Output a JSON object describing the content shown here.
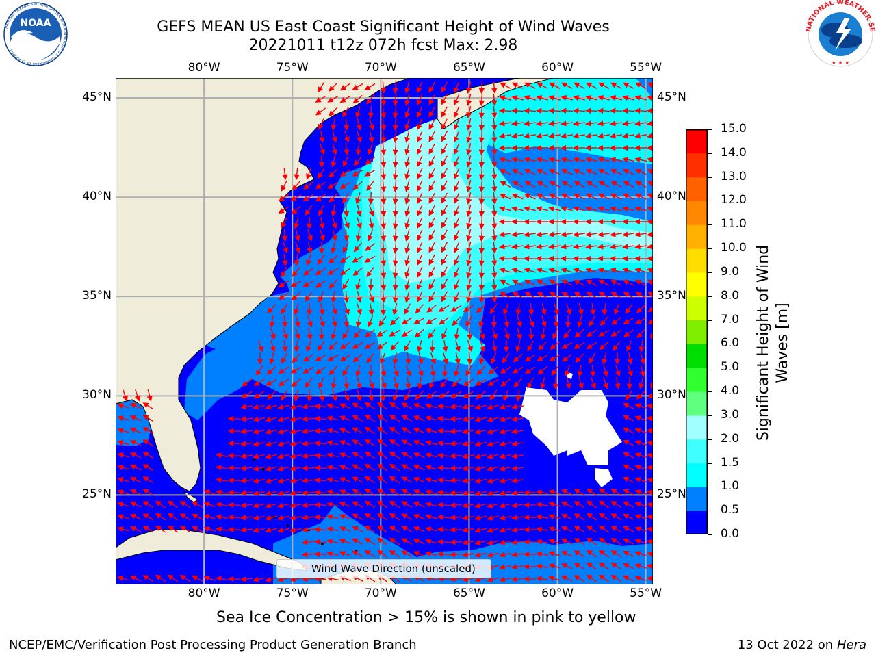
{
  "header": {
    "title_line1": "GEFS MEAN US East Coast Significant Height of Wind Waves",
    "title_line2": "20221011 t12z 072h fcst   Max: 2.98"
  },
  "logos": {
    "left": "noaa-logo",
    "left_text": "NOAA",
    "left_ring_text": "NATIONAL OCEANIC AND ATMOSPHERIC ADMINISTRATION · U.S. DEPARTMENT OF COMMERCE",
    "right": "nws-logo",
    "right_ring_text": "NATIONAL WEATHER SERVICE"
  },
  "map": {
    "lon_labels": [
      "80°W",
      "75°W",
      "70°W",
      "65°W",
      "60°W",
      "55°W"
    ],
    "lon_values": [
      -80,
      -75,
      -70,
      -65,
      -60,
      -55
    ],
    "lat_labels": [
      "45°N",
      "40°N",
      "35°N",
      "30°N",
      "25°N"
    ],
    "lat_values": [
      45,
      40,
      35,
      30,
      25
    ],
    "lon_range": [
      -85,
      -54.6
    ],
    "lat_range": [
      20.5,
      46
    ],
    "colors": {
      "land": "#efedda",
      "ocean_0": "#0000ff",
      "ocean_0_5": "#0080ff",
      "ocean_1": "#00ffff",
      "ocean_1_5": "#40ffff",
      "ocean_2": "#a0ffff",
      "no_data": "#ffffff",
      "arrows": "#ff0000",
      "gridlines": "#b0b0b0"
    },
    "legend_text": "Wind Wave Direction (unscaled)"
  },
  "colorbar": {
    "label": "Significant Height of Wind Waves [m]",
    "label_line1": "Significant Height of Wind",
    "label_line2": "Waves [m]",
    "ticks": [
      "0.0",
      "0.5",
      "1.0",
      "1.5",
      "2.0",
      "3.0",
      "4.0",
      "5.0",
      "6.0",
      "7.0",
      "8.0",
      "9.0",
      "10.0",
      "11.0",
      "12.0",
      "13.0",
      "14.0",
      "15.0"
    ],
    "colors": [
      "#0000ff",
      "#0080ff",
      "#00ffff",
      "#40ffff",
      "#a0ffff",
      "#60ff80",
      "#30ff30",
      "#00dd00",
      "#80ee00",
      "#ccff00",
      "#ffff00",
      "#ffdd00",
      "#ffb000",
      "#ff8800",
      "#ff6000",
      "#ff3000",
      "#ff0000"
    ]
  },
  "caption": "Sea Ice Concentration > 15% is shown in pink to yellow",
  "footer": {
    "left": "NCEP/EMC/Verification Post Processing Product Generation Branch",
    "right_prefix": "13 Oct 2022 on",
    "right_host": "Hera"
  }
}
